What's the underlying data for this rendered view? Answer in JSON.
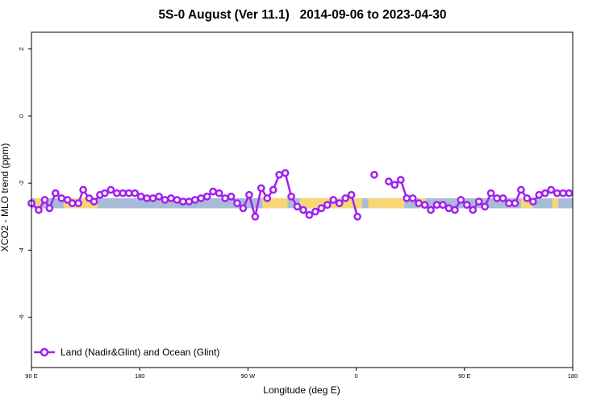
{
  "chart_data": {
    "type": "line",
    "title": "5S-0 August (Ver 11.1)   2014-09-06 to 2023-04-30",
    "xlabel": "Longitude (deg E)",
    "ylabel": "XCO2 - MLO trend (ppm)",
    "xlim": [
      90,
      540
    ],
    "ylim": [
      -7.5,
      2.5
    ],
    "x_ticks": [
      {
        "value": 90,
        "label": "90 E"
      },
      {
        "value": 180,
        "label": "180"
      },
      {
        "value": 270,
        "label": "90 W"
      },
      {
        "value": 360,
        "label": "0"
      },
      {
        "value": 450,
        "label": "90 E"
      },
      {
        "value": 540,
        "label": "180"
      }
    ],
    "y_ticks": [
      {
        "value": 2,
        "label": "2"
      },
      {
        "value": 0,
        "label": "0"
      },
      {
        "value": -2,
        "label": "-2"
      },
      {
        "value": -4,
        "label": "-4"
      },
      {
        "value": -6,
        "label": "-6"
      }
    ],
    "grid": false,
    "legend_position": "bottom-left",
    "band": {
      "y_range": [
        -2.75,
        -2.45
      ],
      "ocean_color": "#a8bcd8",
      "land_color": "#f7d775",
      "land_segments": [
        [
          93,
          98
        ],
        [
          117,
          145
        ],
        [
          282,
          303
        ],
        [
          313,
          365
        ],
        [
          370,
          400
        ],
        [
          412,
          418
        ],
        [
          497,
          507
        ],
        [
          523,
          528
        ]
      ]
    },
    "series": [
      {
        "name": "Land (Nadir&Glint) and Ocean (Glint)",
        "color": "#a020f0",
        "points": [
          [
            90,
            -2.6
          ],
          [
            96,
            -2.8
          ],
          [
            101,
            -2.5
          ],
          [
            105,
            -2.75
          ],
          [
            110,
            -2.3
          ],
          [
            115,
            -2.45
          ],
          [
            120,
            -2.5
          ],
          [
            124,
            -2.6
          ],
          [
            129,
            -2.6
          ],
          [
            133,
            -2.2
          ],
          [
            138,
            -2.45
          ],
          [
            142,
            -2.55
          ],
          [
            147,
            -2.35
          ],
          [
            151,
            -2.3
          ],
          [
            156,
            -2.2
          ],
          [
            161,
            -2.3
          ],
          [
            166,
            -2.3
          ],
          [
            171,
            -2.3
          ],
          [
            176,
            -2.3
          ],
          [
            181,
            -2.4
          ],
          [
            186,
            -2.45
          ],
          [
            191,
            -2.45
          ],
          [
            196,
            -2.4
          ],
          [
            201,
            -2.5
          ],
          [
            206,
            -2.45
          ],
          [
            211,
            -2.5
          ],
          [
            216,
            -2.55
          ],
          [
            221,
            -2.55
          ],
          [
            226,
            -2.5
          ],
          [
            231,
            -2.45
          ],
          [
            236,
            -2.4
          ],
          [
            241,
            -2.25
          ],
          [
            246,
            -2.3
          ],
          [
            251,
            -2.45
          ],
          [
            256,
            -2.4
          ],
          [
            261,
            -2.6
          ],
          [
            266,
            -2.75
          ],
          [
            271,
            -2.35
          ],
          [
            276,
            -3.0
          ],
          [
            281,
            -2.15
          ],
          [
            286,
            -2.45
          ],
          [
            291,
            -2.2
          ],
          [
            296,
            -1.75
          ],
          [
            301,
            -1.7
          ],
          [
            306,
            -2.4
          ],
          [
            311,
            -2.7
          ],
          [
            316,
            -2.8
          ],
          [
            321,
            -2.95
          ],
          [
            326,
            -2.85
          ],
          [
            331,
            -2.75
          ],
          [
            336,
            -2.65
          ],
          [
            341,
            -2.5
          ],
          [
            346,
            -2.6
          ],
          [
            351,
            -2.45
          ],
          [
            356,
            -2.35
          ],
          [
            361,
            -3.0
          ],
          null,
          [
            375,
            -1.75
          ],
          null,
          [
            387,
            -1.95
          ],
          [
            392,
            -2.05
          ],
          [
            397,
            -1.9
          ],
          [
            402,
            -2.45
          ],
          [
            407,
            -2.45
          ],
          [
            412,
            -2.6
          ],
          [
            417,
            -2.65
          ],
          [
            422,
            -2.8
          ],
          [
            427,
            -2.65
          ],
          [
            432,
            -2.65
          ],
          [
            437,
            -2.75
          ],
          [
            442,
            -2.8
          ],
          [
            447,
            -2.5
          ],
          [
            452,
            -2.65
          ],
          [
            457,
            -2.8
          ],
          [
            462,
            -2.55
          ],
          [
            467,
            -2.7
          ],
          [
            472,
            -2.3
          ],
          [
            477,
            -2.45
          ],
          [
            482,
            -2.45
          ],
          [
            487,
            -2.6
          ],
          [
            492,
            -2.6
          ],
          [
            497,
            -2.2
          ],
          [
            502,
            -2.45
          ],
          [
            507,
            -2.55
          ],
          [
            512,
            -2.35
          ],
          [
            517,
            -2.3
          ],
          [
            522,
            -2.2
          ],
          [
            527,
            -2.3
          ],
          [
            532,
            -2.3
          ],
          [
            537,
            -2.3
          ]
        ]
      }
    ]
  }
}
